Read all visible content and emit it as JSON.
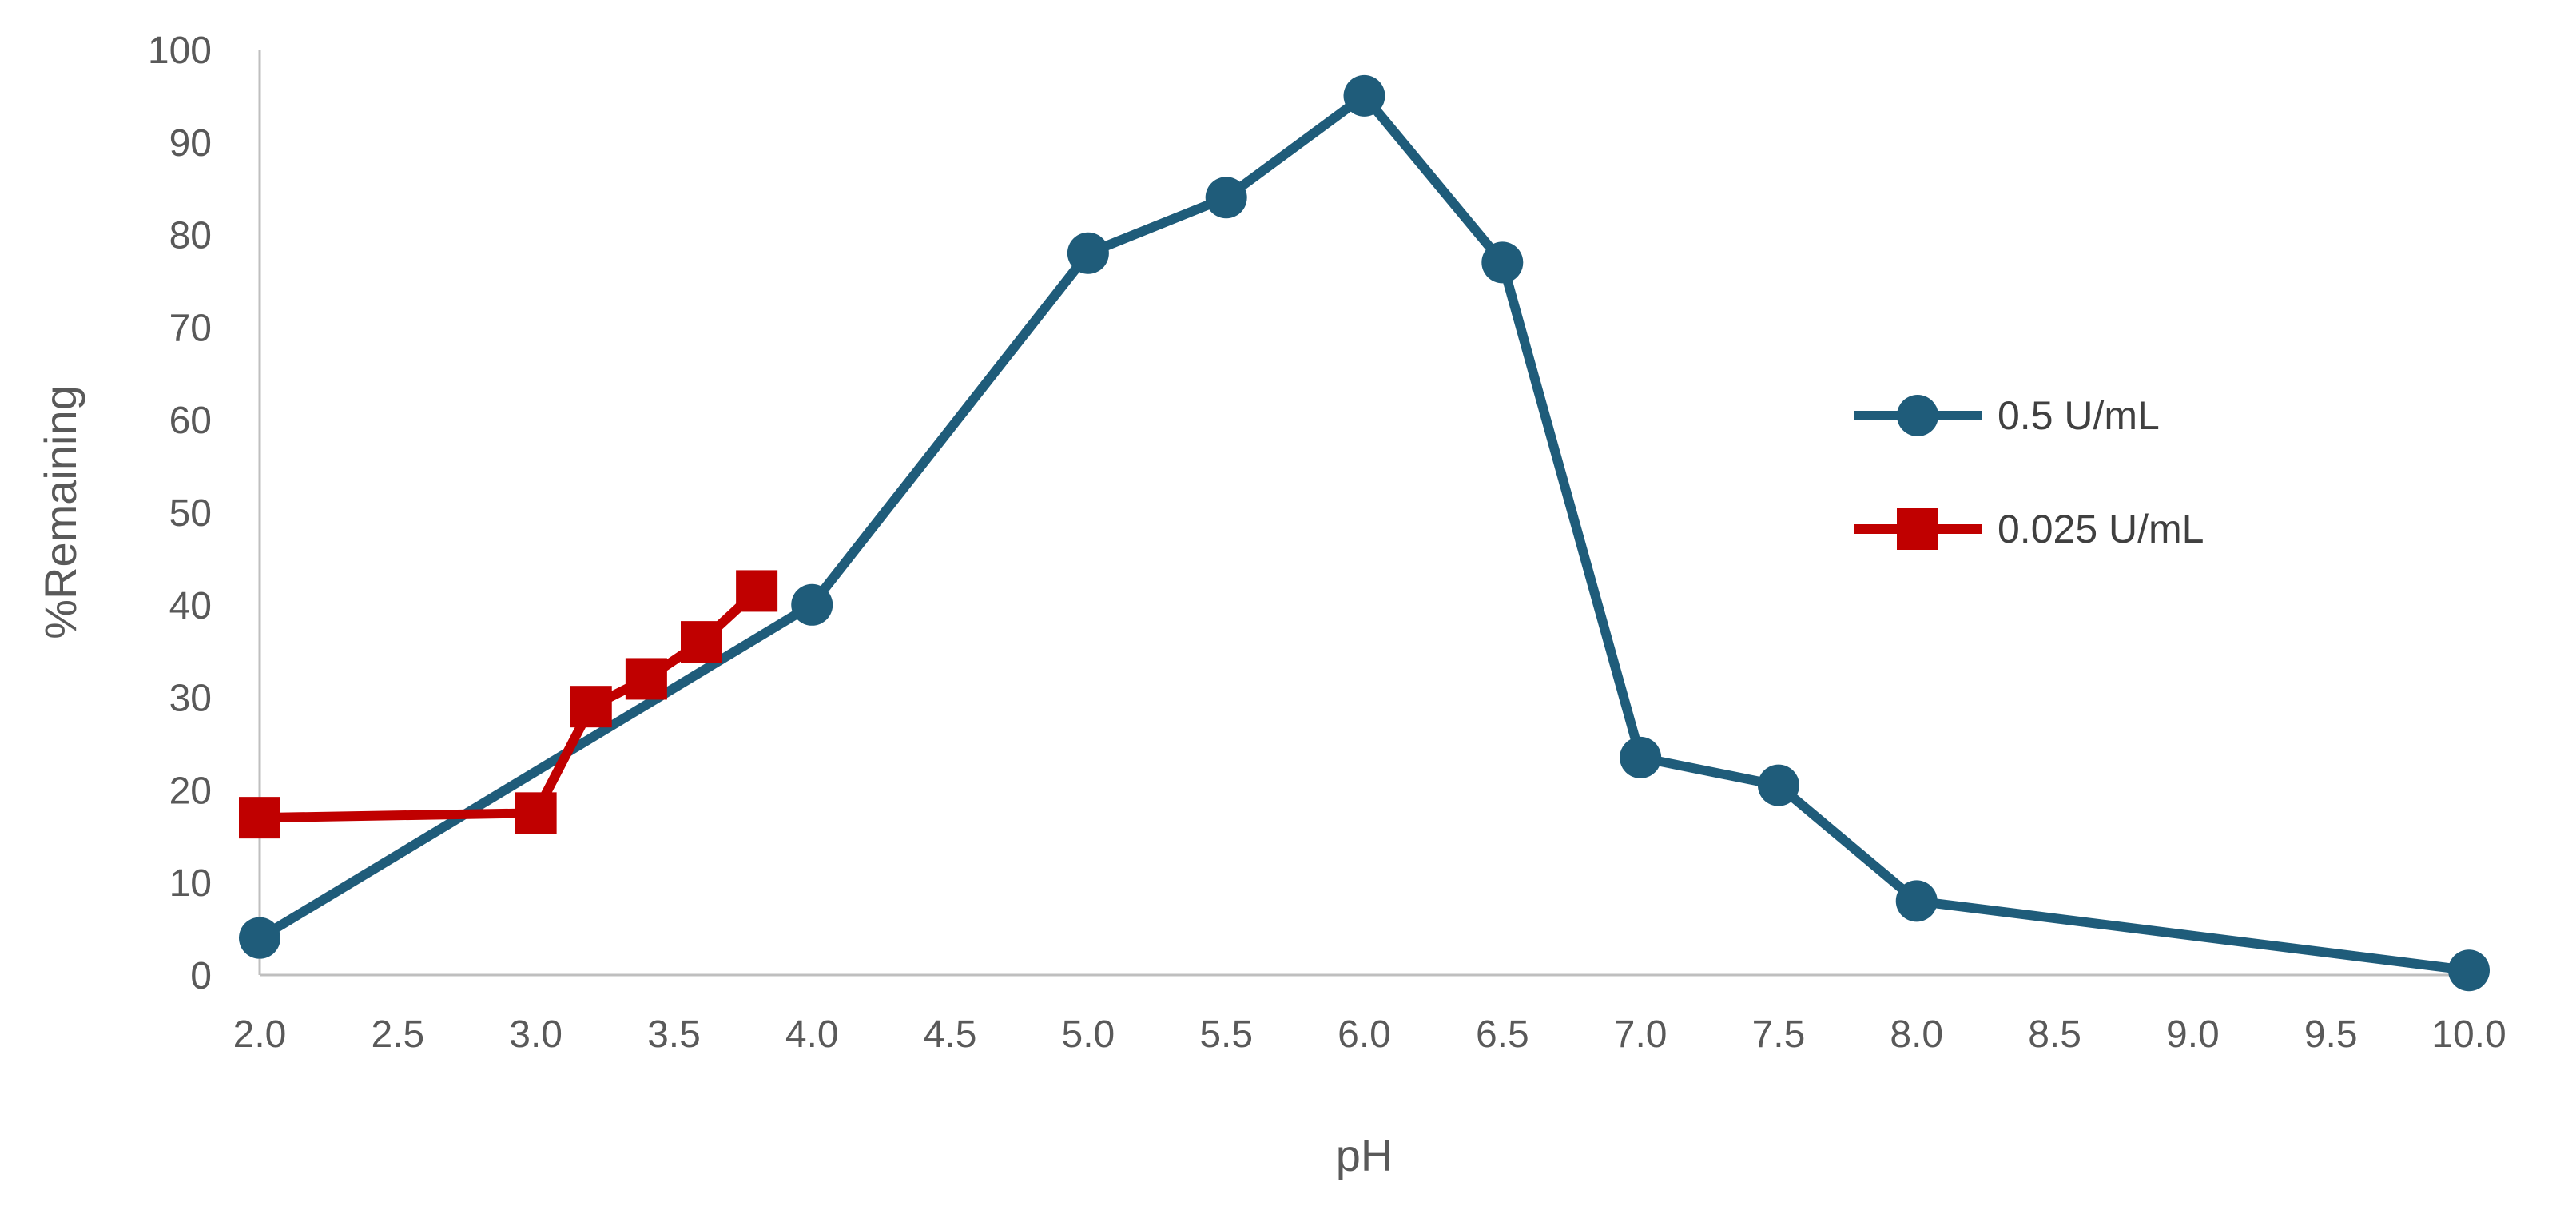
{
  "chart_data": {
    "type": "line",
    "xlabel": "pH",
    "ylabel": "%Remaining",
    "xlim": [
      2.0,
      10.0
    ],
    "ylim": [
      0,
      100
    ],
    "x_ticks": [
      "2.0",
      "2.5",
      "3.0",
      "3.5",
      "4.0",
      "4.5",
      "5.0",
      "5.5",
      "6.0",
      "6.5",
      "7.0",
      "7.5",
      "8.0",
      "8.5",
      "9.0",
      "9.5",
      "10.0"
    ],
    "y_ticks": [
      "0",
      "10",
      "20",
      "30",
      "40",
      "50",
      "60",
      "70",
      "80",
      "90",
      "100"
    ],
    "grid": false,
    "legend_position": "right",
    "series": [
      {
        "name": "0.5 U/mL",
        "color": "#1F5C7A",
        "marker": "circle",
        "x": [
          2.0,
          4.0,
          5.0,
          5.5,
          6.0,
          6.5,
          7.0,
          7.5,
          8.0,
          10.0
        ],
        "y": [
          4,
          40,
          78,
          84,
          95,
          77,
          23.5,
          20.5,
          8,
          0.5
        ]
      },
      {
        "name": "0.025 U/mL",
        "color": "#C00000",
        "marker": "square",
        "x": [
          2.0,
          3.0,
          3.2,
          3.4,
          3.6,
          3.8
        ],
        "y": [
          17,
          17.5,
          29,
          32,
          36,
          41.5
        ]
      }
    ]
  }
}
